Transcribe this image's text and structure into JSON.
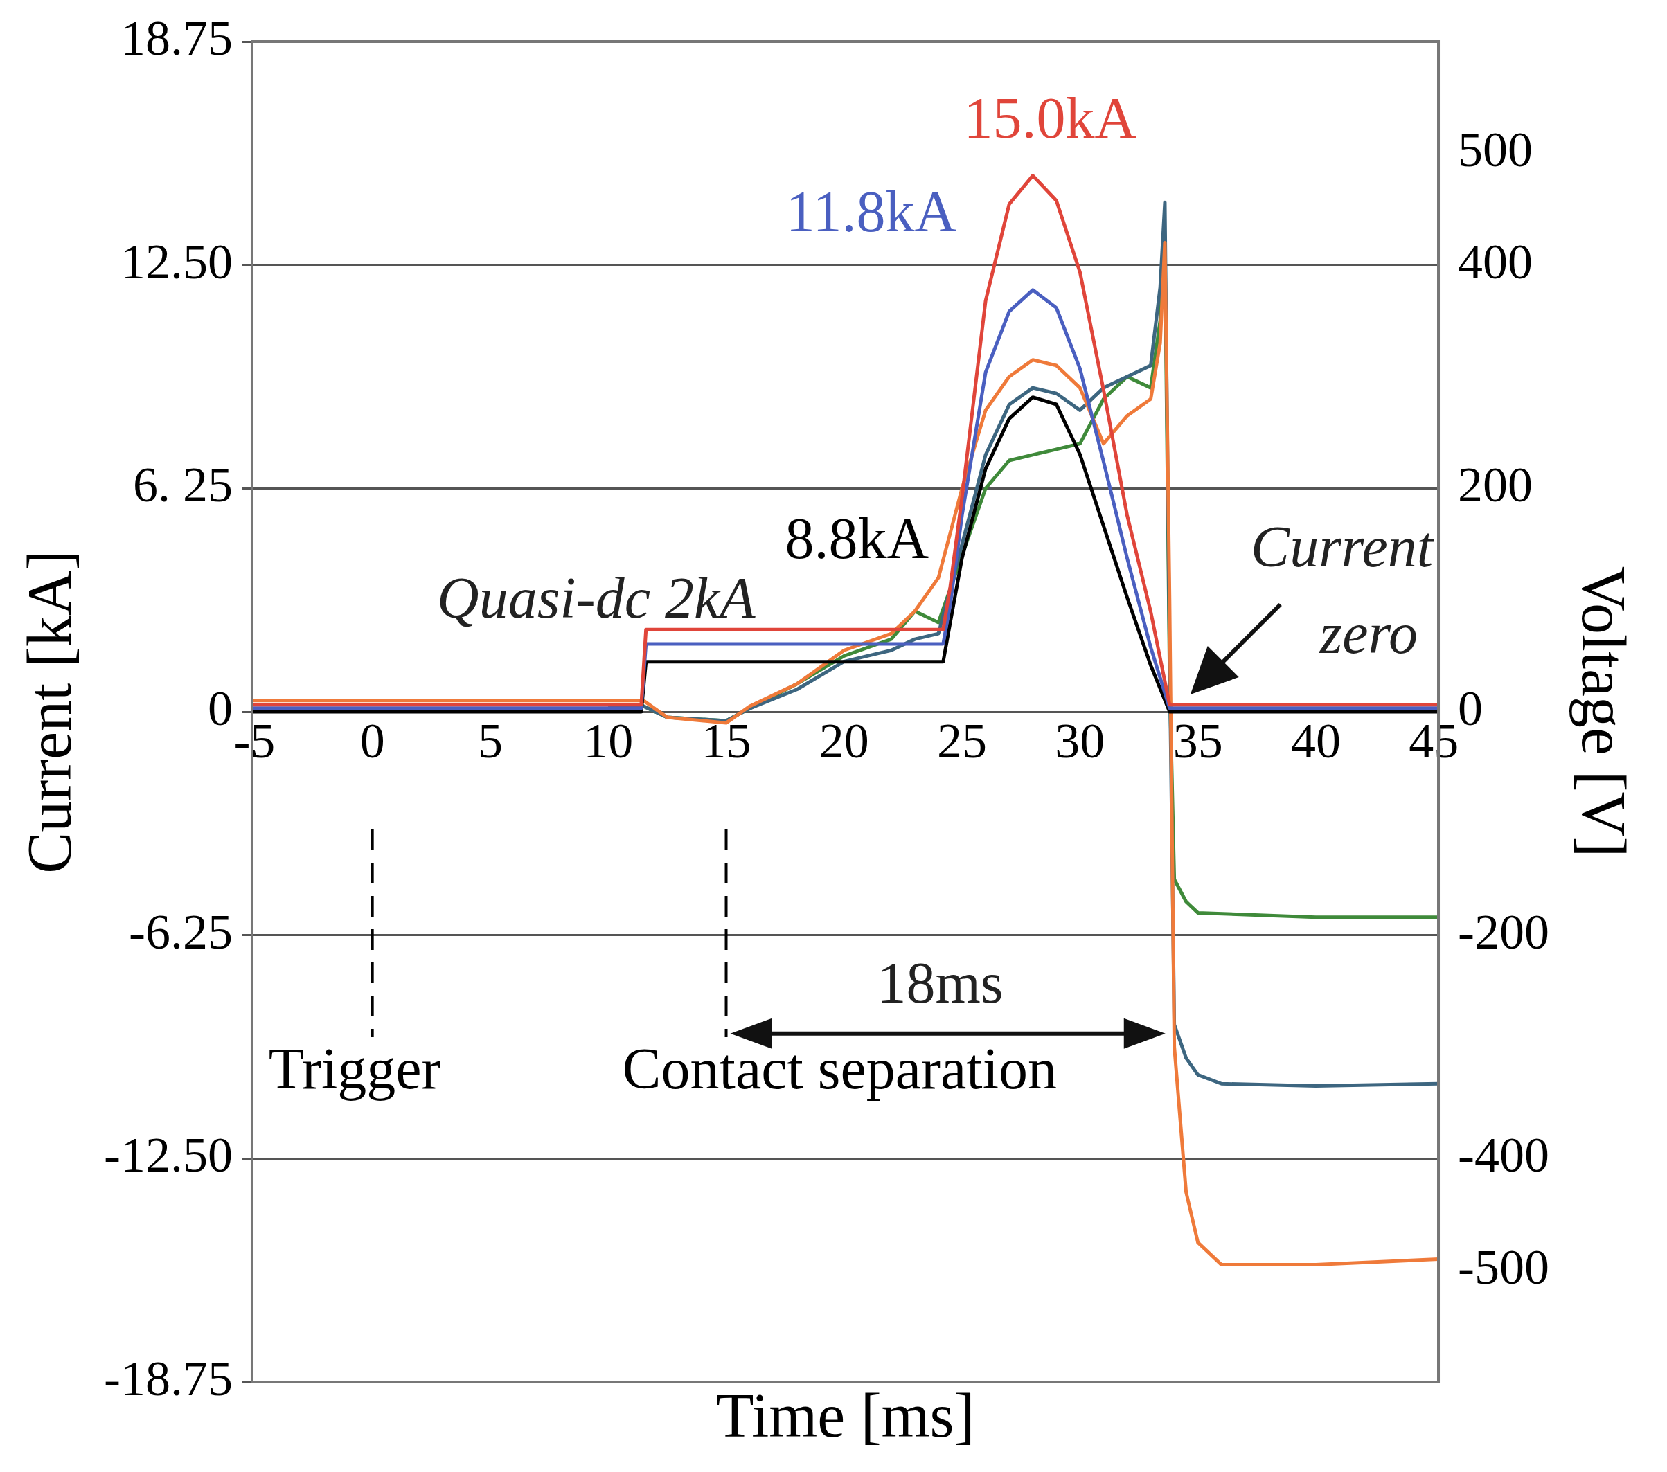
{
  "chart_data": {
    "type": "line",
    "xlabel": "Time [ms]",
    "ylabel": "Current [kA]",
    "y2label": "Voltage [V]",
    "xlim": [
      -5.1,
      45.2
    ],
    "xticks": [
      -5,
      0,
      5,
      10,
      15,
      20,
      25,
      30,
      35,
      40,
      45
    ],
    "ylim": [
      -18.75,
      18.75
    ],
    "yticks": [
      {
        "value": 18.75,
        "label": "18.75"
      },
      {
        "value": 12.5,
        "label": "12.50"
      },
      {
        "value": 6.25,
        "label": "6. 25"
      },
      0,
      {
        "value": -6.25,
        "label": "-6.25"
      },
      {
        "value": -12.5,
        "label": "-12.50"
      },
      {
        "value": -18.75,
        "label": "-18.75"
      }
    ],
    "y2lim": [
      -600,
      600
    ],
    "y2ticks": [
      500,
      400,
      200,
      0,
      -200,
      -400,
      -500
    ],
    "grid": "y",
    "legend": false,
    "marker": "none",
    "line_style": "solid",
    "series": [
      {
        "name": "15.0kA",
        "color": "#e0453a",
        "x": [
          -5.1,
          0,
          5,
          10,
          11.4,
          11.6,
          15,
          20,
          24.2,
          24.5,
          25,
          26,
          27,
          28,
          29,
          30,
          31,
          32,
          33,
          33.8,
          34.5,
          40,
          45.2
        ],
        "values": [
          0.2,
          0.2,
          0.2,
          0.2,
          0.2,
          2.3,
          2.3,
          2.3,
          2.3,
          3.5,
          6,
          11.5,
          14.2,
          15.0,
          14.3,
          12.3,
          9,
          5.5,
          2.8,
          0.2,
          0.2,
          0.2,
          0.2
        ]
      },
      {
        "name": "11.8kA",
        "color": "#4a5fc0",
        "x": [
          -5.1,
          0,
          5,
          10,
          11.4,
          11.6,
          15,
          20,
          24.2,
          24.5,
          25,
          26,
          27,
          28,
          29,
          30,
          31,
          32,
          33,
          33.8,
          34.5,
          40,
          45.2
        ],
        "values": [
          0.1,
          0.1,
          0.1,
          0.1,
          0.1,
          1.9,
          1.9,
          1.9,
          1.9,
          3,
          5.5,
          9.5,
          11.2,
          11.8,
          11.3,
          9.6,
          7,
          4.3,
          1.8,
          0.1,
          0.1,
          0.1,
          0.1
        ]
      },
      {
        "name": "8.8kA",
        "color": "#000000",
        "x": [
          -5.1,
          0,
          5,
          10,
          11.4,
          11.6,
          15,
          20,
          24.2,
          24.5,
          25,
          26,
          27,
          28,
          29,
          30,
          31,
          32,
          33,
          33.8,
          34.5,
          40,
          45.2
        ],
        "values": [
          0,
          0,
          0,
          0,
          0,
          1.4,
          1.4,
          1.4,
          1.4,
          2.5,
          4.3,
          6.8,
          8.2,
          8.8,
          8.6,
          7.2,
          5.2,
          3.2,
          1.3,
          0,
          0,
          0,
          0
        ]
      },
      {
        "color": "#ef7a3a",
        "axis": "y2",
        "x": [
          -5.1,
          0,
          5,
          10,
          11.5,
          12.5,
          15,
          16,
          18,
          20,
          22,
          23,
          24,
          24.5,
          25,
          26,
          27,
          28,
          29,
          30,
          31,
          32,
          33,
          33.4,
          33.6,
          33.8,
          34,
          34.5,
          35,
          36,
          40,
          45.2
        ],
        "values": [
          10,
          10,
          10,
          10,
          10,
          -5,
          -10,
          5,
          25,
          55,
          70,
          90,
          120,
          160,
          200,
          270,
          300,
          315,
          310,
          290,
          240,
          265,
          280,
          330,
          420,
          100,
          -300,
          -430,
          -475,
          -495,
          -495,
          -490
        ]
      },
      {
        "color": "#3d6680",
        "axis": "y2",
        "x": [
          10,
          11.5,
          12.5,
          15,
          16,
          18,
          20,
          22,
          23,
          24,
          25,
          26,
          27,
          28,
          29,
          30,
          31,
          32,
          33,
          33.4,
          33.6,
          33.8,
          34,
          34.5,
          35,
          36,
          40,
          45.2
        ],
        "values": [
          5,
          5,
          -5,
          -8,
          3,
          20,
          45,
          55,
          65,
          70,
          150,
          230,
          275,
          290,
          285,
          270,
          290,
          300,
          310,
          380,
          456,
          50,
          -280,
          -310,
          -325,
          -333,
          -335,
          -333
        ]
      },
      {
        "color": "#3f8a3a",
        "axis": "y2",
        "x": [
          10,
          11.5,
          12.5,
          15,
          16,
          18,
          20,
          22,
          23,
          24,
          25,
          26,
          27,
          28,
          29,
          30,
          31,
          32,
          33,
          33.4,
          33.6,
          33.8,
          34,
          34.5,
          35,
          40,
          45.2
        ],
        "values": [
          5,
          5,
          -5,
          -8,
          3,
          25,
          50,
          65,
          90,
          80,
          140,
          200,
          225,
          230,
          235,
          240,
          280,
          300,
          290,
          350,
          420,
          30,
          -150,
          -170,
          -180,
          -184,
          -184
        ]
      }
    ],
    "ref_lines": [
      {
        "axis": "x",
        "value": 0,
        "label": "Trigger",
        "color": "#000000",
        "line_style": "dashed"
      },
      {
        "axis": "x",
        "value": 15,
        "label": "Contact separation",
        "color": "#000000",
        "line_style": "dashed"
      }
    ],
    "annotations": [
      "Quasi-dc 2kA",
      {
        "text": "Current zero",
        "x": 33.8,
        "y": 0
      },
      "18ms"
    ]
  }
}
